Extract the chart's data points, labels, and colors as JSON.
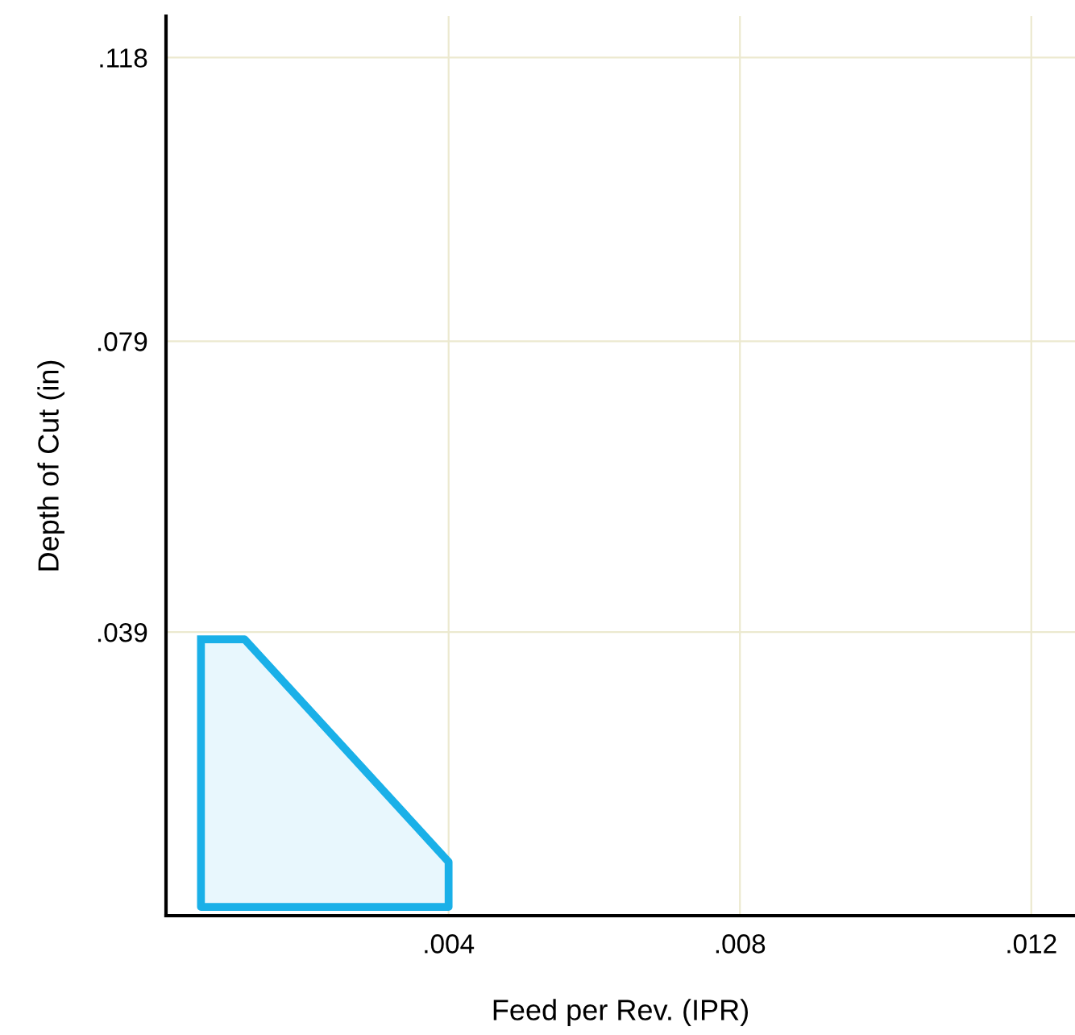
{
  "chart_data": {
    "type": "area",
    "xlabel": "Feed per Rev. (IPR)",
    "ylabel": "Depth of Cut (in)",
    "series": [
      {
        "color": "#1ab0e8",
        "x": [
          0.0006,
          0.0012,
          0.004,
          0.004,
          0.0006,
          0.0006
        ],
        "values": [
          0.038,
          0.038,
          0.0074,
          0.0012,
          0.0012,
          0.038
        ]
      }
    ],
    "xlim": [
      0.00012,
      0.0126
    ],
    "ylim": [
      0,
      0.1237
    ],
    "xticks": [
      {
        "value": 0.004,
        "label": ".004"
      },
      {
        "value": 0.008,
        "label": ".008"
      },
      {
        "value": 0.012,
        "label": ".012"
      }
    ],
    "yticks": [
      {
        "value": 0.039,
        "label": ".039"
      },
      {
        "value": 0.079,
        "label": ".079"
      },
      {
        "value": 0.118,
        "label": ".118"
      }
    ],
    "grid": true
  }
}
